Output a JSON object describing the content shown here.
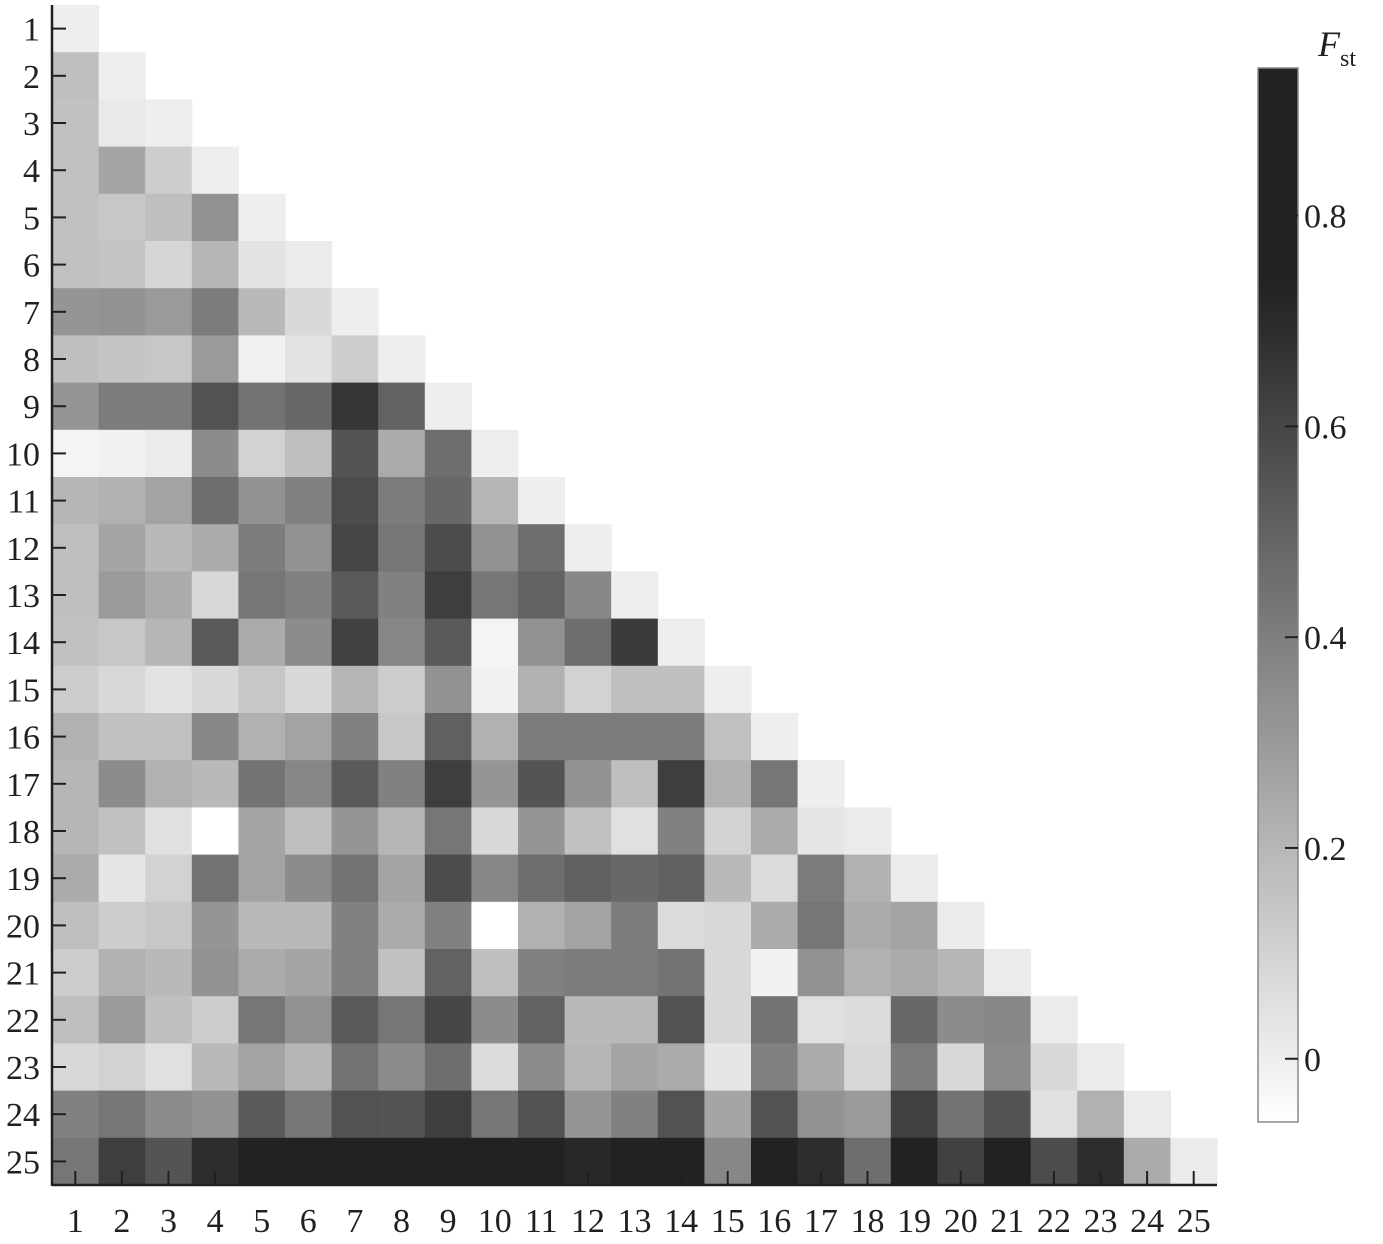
{
  "chart_data": {
    "type": "heatmap",
    "title": "",
    "xlabel": "",
    "ylabel": "",
    "matrix_shape": "lower-triangular",
    "x_tick_labels": [
      "1",
      "2",
      "3",
      "4",
      "5",
      "6",
      "7",
      "8",
      "9",
      "10",
      "11",
      "12",
      "13",
      "14",
      "15",
      "16",
      "17",
      "18",
      "19",
      "20",
      "21",
      "22",
      "23",
      "24",
      "25"
    ],
    "y_tick_labels": [
      "1",
      "2",
      "3",
      "4",
      "5",
      "6",
      "7",
      "8",
      "9",
      "10",
      "11",
      "12",
      "13",
      "14",
      "15",
      "16",
      "17",
      "18",
      "19",
      "20",
      "21",
      "22",
      "23",
      "24",
      "25"
    ],
    "colormap": "gray (white = low, black = high)",
    "colorbar": {
      "label_main": "F",
      "label_sub": "st",
      "range": [
        -0.06,
        0.94
      ],
      "ticks": [
        0,
        0.2,
        0.4,
        0.6,
        0.8
      ],
      "tick_labels": [
        "0",
        "0.2",
        "0.4",
        "0.6",
        "0.8"
      ],
      "saturation_value": 0.73
    },
    "values": [
      [
        0
      ],
      [
        0.17,
        0
      ],
      [
        0.16,
        0.02,
        0
      ],
      [
        0.16,
        0.26,
        0.12,
        0
      ],
      [
        0.16,
        0.14,
        0.17,
        0.33,
        0
      ],
      [
        0.16,
        0.15,
        0.09,
        0.2,
        0.04,
        0.01
      ],
      [
        0.32,
        0.33,
        0.3,
        0.41,
        0.19,
        0.08,
        0
      ],
      [
        0.17,
        0.15,
        0.14,
        0.3,
        -0.01,
        0.04,
        0.12,
        0
      ],
      [
        0.32,
        0.41,
        0.41,
        0.56,
        0.44,
        0.48,
        0.66,
        0.5,
        0
      ],
      [
        -0.02,
        -0.01,
        0.01,
        0.35,
        0.1,
        0.17,
        0.55,
        0.24,
        0.46,
        0
      ],
      [
        0.2,
        0.22,
        0.27,
        0.46,
        0.33,
        0.39,
        0.58,
        0.41,
        0.48,
        0.2,
        0
      ],
      [
        0.17,
        0.26,
        0.19,
        0.24,
        0.41,
        0.33,
        0.6,
        0.43,
        0.58,
        0.33,
        0.46,
        0
      ],
      [
        0.17,
        0.3,
        0.24,
        0.08,
        0.43,
        0.39,
        0.53,
        0.39,
        0.63,
        0.43,
        0.5,
        0.37,
        0
      ],
      [
        0.16,
        0.14,
        0.2,
        0.53,
        0.24,
        0.35,
        0.62,
        0.37,
        0.53,
        -0.02,
        0.33,
        0.46,
        0.64,
        0
      ],
      [
        0.12,
        0.08,
        0.04,
        0.08,
        0.14,
        0.08,
        0.2,
        0.12,
        0.33,
        -0.01,
        0.22,
        0.1,
        0.17,
        0.17,
        0
      ],
      [
        0.22,
        0.16,
        0.16,
        0.37,
        0.22,
        0.27,
        0.39,
        0.14,
        0.51,
        0.22,
        0.41,
        0.41,
        0.41,
        0.41,
        0.16,
        0
      ],
      [
        0.2,
        0.35,
        0.22,
        0.19,
        0.44,
        0.37,
        0.53,
        0.39,
        0.63,
        0.32,
        0.55,
        0.33,
        0.17,
        0.63,
        0.22,
        0.43,
        0
      ],
      [
        0.2,
        0.16,
        0.05,
        -0.06,
        0.26,
        0.17,
        0.32,
        0.2,
        0.43,
        0.08,
        0.32,
        0.16,
        0.05,
        0.39,
        0.1,
        0.24,
        0.03,
        0.01
      ],
      [
        0.24,
        0.03,
        0.1,
        0.44,
        0.27,
        0.35,
        0.44,
        0.26,
        0.58,
        0.37,
        0.46,
        0.51,
        0.48,
        0.51,
        0.19,
        0.07,
        0.41,
        0.22,
        0.01
      ],
      [
        0.17,
        0.12,
        0.14,
        0.32,
        0.19,
        0.19,
        0.39,
        0.24,
        0.39,
        -0.06,
        0.22,
        0.27,
        0.41,
        0.07,
        0.08,
        0.24,
        0.43,
        0.24,
        0.27,
        0.01
      ],
      [
        0.12,
        0.22,
        0.19,
        0.33,
        0.24,
        0.26,
        0.39,
        0.16,
        0.5,
        0.17,
        0.39,
        0.41,
        0.41,
        0.44,
        0.08,
        -0.01,
        0.33,
        0.22,
        0.24,
        0.2,
        0.01
      ],
      [
        0.17,
        0.3,
        0.17,
        0.12,
        0.43,
        0.33,
        0.53,
        0.43,
        0.6,
        0.35,
        0.5,
        0.19,
        0.19,
        0.56,
        0.08,
        0.44,
        0.05,
        0.07,
        0.48,
        0.35,
        0.37,
        0.01
      ],
      [
        0.08,
        0.1,
        0.05,
        0.19,
        0.27,
        0.2,
        0.44,
        0.35,
        0.46,
        0.07,
        0.35,
        0.2,
        0.26,
        0.24,
        0.03,
        0.39,
        0.24,
        0.08,
        0.41,
        0.08,
        0.35,
        0.08,
        0.01
      ],
      [
        0.39,
        0.43,
        0.35,
        0.33,
        0.53,
        0.43,
        0.56,
        0.55,
        0.63,
        0.43,
        0.56,
        0.32,
        0.39,
        0.56,
        0.26,
        0.56,
        0.33,
        0.3,
        0.62,
        0.44,
        0.55,
        0.05,
        0.22,
        0.01
      ],
      [
        0.43,
        0.63,
        0.55,
        0.69,
        0.8,
        0.8,
        0.8,
        0.8,
        0.8,
        0.8,
        0.8,
        0.71,
        0.8,
        0.8,
        0.37,
        0.8,
        0.69,
        0.46,
        0.8,
        0.62,
        0.8,
        0.58,
        0.69,
        0.24,
        0.01
      ]
    ]
  }
}
